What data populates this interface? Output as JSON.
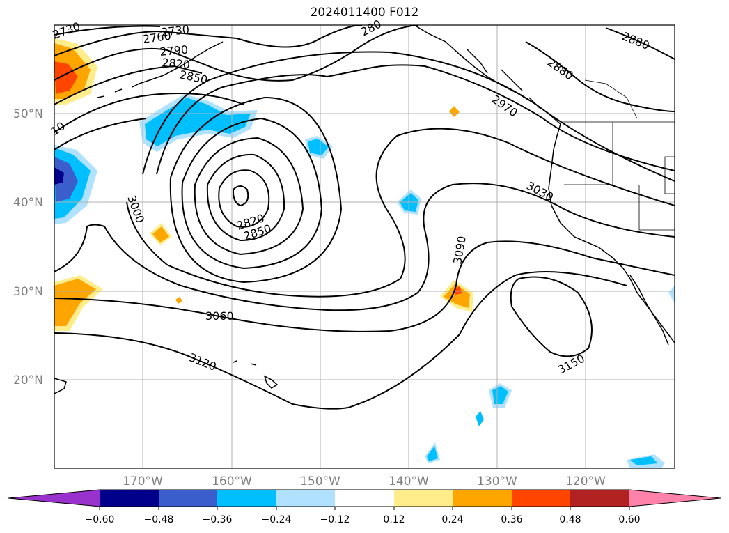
{
  "title": "2024011400 F012",
  "map": {
    "lat_labels": [
      "50°N",
      "40°N",
      "30°N",
      "20°N"
    ],
    "lon_labels": [
      "170°W",
      "160°W",
      "150°W",
      "140°W",
      "130°W",
      "120°W"
    ],
    "contour_labels": [
      "2730",
      "2760",
      "2730",
      "2790",
      "2820",
      "2850",
      "2880",
      "2880",
      "2970",
      "3030",
      "3000",
      "2820",
      "2850",
      "3090",
      "3060",
      "3120",
      "3150",
      "10",
      "280"
    ]
  },
  "colorbar": {
    "colors": [
      "#9932cc",
      "#00008b",
      "#3a5fcd",
      "#00bfff",
      "#b0e2ff",
      "#ffffff",
      "#ffec8b",
      "#ffa500",
      "#ff4500",
      "#b22222",
      "#ff82ab"
    ],
    "tick_labels": [
      "−0.60",
      "−0.48",
      "−0.36",
      "−0.24",
      "−0.12",
      "0.12",
      "0.24",
      "0.36",
      "0.48",
      "0.60"
    ]
  }
}
